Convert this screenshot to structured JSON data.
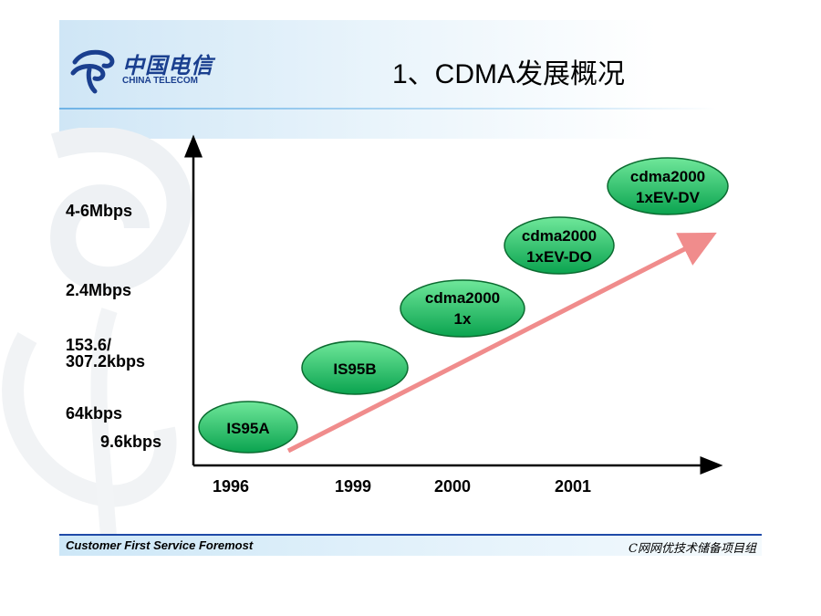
{
  "header": {
    "logo_cn": "中国电信",
    "logo_en": "CHINA TELECOM",
    "title": "1、CDMA发展概况"
  },
  "y_axis_labels": [
    "4-6Mbps",
    "2.4Mbps",
    "153.6/",
    "307.2kbps",
    "64kbps",
    "9.6kbps"
  ],
  "x_axis_labels": [
    "1996",
    "1999",
    "2000",
    "2001"
  ],
  "nodes": [
    {
      "lines": [
        "IS95A"
      ]
    },
    {
      "lines": [
        "IS95B"
      ]
    },
    {
      "lines": [
        "cdma2000",
        "1x"
      ]
    },
    {
      "lines": [
        "cdma2000",
        "1xEV-DO"
      ]
    },
    {
      "lines": [
        "cdma2000",
        "1xEV-DV"
      ]
    }
  ],
  "footer": {
    "left": "Customer First Service Foremost",
    "right": "C网网优技术储备项目组"
  },
  "colors": {
    "node_fill_top": "#6fe79a",
    "node_fill_bottom": "#0aa34f",
    "node_border": "#0b6b30",
    "trend_arrow": "#f08c8c",
    "axis": "#000000",
    "accent_blue": "#1f4aa8"
  }
}
